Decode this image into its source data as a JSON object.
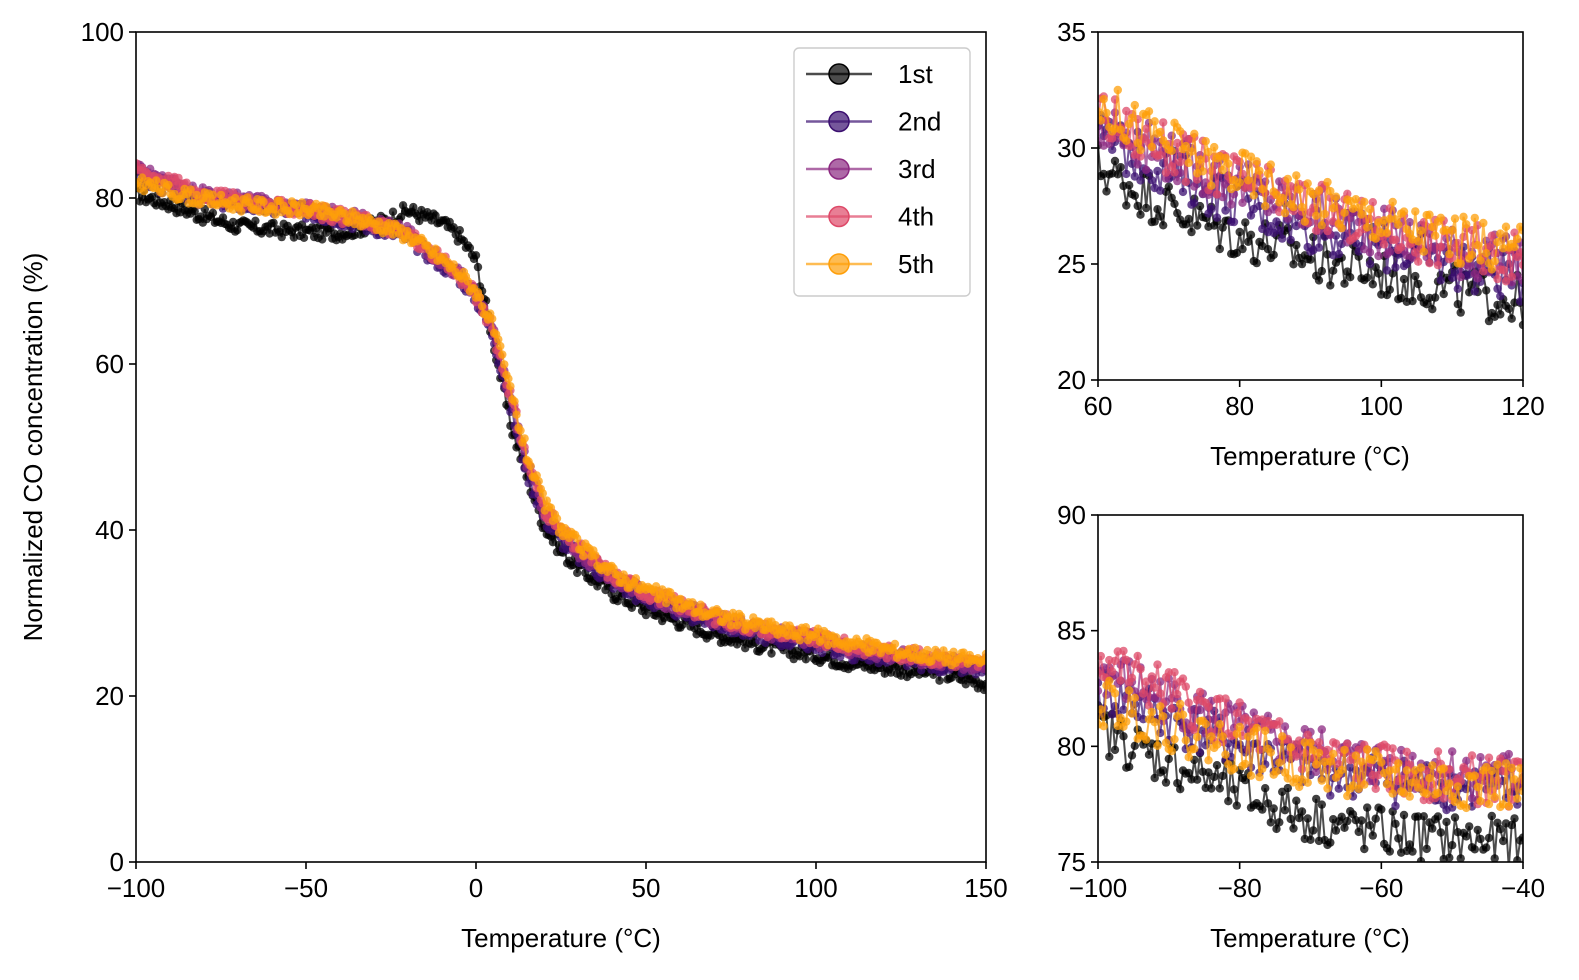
{
  "colors": {
    "1st": "#000000",
    "2nd": "#3b0f70",
    "3rd": "#8c2981",
    "4th": "#de4968",
    "5th": "#fe9f0a"
  },
  "chart_data": [
    {
      "type": "line",
      "panel": "main",
      "xlabel": "Temperature (°C)",
      "ylabel": "Normalized CO concentration (%)",
      "xlim": [
        -100,
        150
      ],
      "ylim": [
        0,
        100
      ],
      "xticks": [
        -100,
        -50,
        0,
        50,
        100,
        150
      ],
      "xtick_labels": [
        "−100",
        "−50",
        "0",
        "50",
        "100",
        "150"
      ],
      "yticks": [
        0,
        20,
        40,
        60,
        80,
        100
      ],
      "ytick_labels": [
        "0",
        "20",
        "40",
        "60",
        "80",
        "100"
      ],
      "legend": "top-right",
      "grid": false,
      "markers": "circle",
      "x": [
        -100,
        -90,
        -80,
        -70,
        -60,
        -50,
        -40,
        -30,
        -20,
        -10,
        -5,
        0,
        5,
        10,
        15,
        20,
        25,
        30,
        40,
        50,
        60,
        70,
        80,
        90,
        100,
        110,
        120,
        130,
        140,
        150
      ],
      "series": [
        {
          "name": "1st",
          "values": [
            80.5,
            79.3,
            77.8,
            76.6,
            76.2,
            75.9,
            75.8,
            76.8,
            78.5,
            77.0,
            75.5,
            72.5,
            63.0,
            53.0,
            46.5,
            40.5,
            37.5,
            35.5,
            32.5,
            30.5,
            29.0,
            27.5,
            26.5,
            25.5,
            25.0,
            24.0,
            23.5,
            23.0,
            22.5,
            21.5
          ]
        },
        {
          "name": "2nd",
          "values": [
            82.5,
            81.0,
            79.8,
            79.2,
            78.7,
            78.3,
            77.5,
            76.5,
            75.2,
            72.0,
            70.5,
            68.0,
            63.5,
            55.0,
            47.0,
            41.5,
            38.8,
            36.8,
            33.8,
            31.6,
            30.2,
            28.8,
            27.8,
            26.8,
            26.2,
            25.2,
            24.6,
            24.0,
            23.5,
            23.0
          ]
        },
        {
          "name": "3rd",
          "values": [
            83.3,
            81.8,
            80.4,
            79.8,
            79.2,
            78.8,
            77.9,
            77.2,
            75.8,
            72.5,
            70.8,
            68.4,
            63.8,
            56.0,
            48.0,
            42.4,
            39.5,
            37.5,
            34.3,
            32.2,
            30.8,
            29.3,
            28.3,
            27.4,
            26.7,
            25.8,
            25.1,
            24.6,
            24.1,
            23.6
          ]
        },
        {
          "name": "4th",
          "values": [
            83.5,
            82.0,
            80.5,
            79.7,
            79.0,
            78.6,
            77.8,
            77.0,
            75.6,
            72.4,
            70.7,
            68.3,
            64.0,
            56.5,
            48.4,
            42.7,
            39.8,
            37.8,
            34.6,
            32.5,
            31.0,
            29.5,
            28.5,
            27.6,
            26.9,
            26.0,
            25.4,
            24.8,
            24.3,
            23.8
          ]
        },
        {
          "name": "5th",
          "values": [
            82.0,
            80.8,
            79.8,
            79.3,
            78.9,
            78.6,
            77.9,
            77.0,
            75.6,
            72.6,
            71.0,
            68.8,
            64.5,
            57.0,
            49.0,
            43.2,
            40.2,
            38.2,
            34.9,
            32.8,
            31.2,
            29.8,
            28.8,
            27.9,
            27.3,
            26.4,
            25.7,
            25.1,
            24.6,
            24.2
          ]
        }
      ]
    },
    {
      "type": "line",
      "panel": "inset-top",
      "xlabel": "Temperature (°C)",
      "ylabel": "",
      "xlim": [
        60,
        120
      ],
      "ylim": [
        20,
        35
      ],
      "xticks": [
        60,
        80,
        100,
        120
      ],
      "xtick_labels": [
        "60",
        "80",
        "100",
        "120"
      ],
      "yticks": [
        20,
        25,
        30,
        35
      ],
      "ytick_labels": [
        "20",
        "25",
        "30",
        "35"
      ],
      "grid": false,
      "markers": "circle",
      "x": [
        60,
        65,
        70,
        75,
        80,
        85,
        90,
        95,
        100,
        105,
        110,
        115,
        120
      ],
      "series": [
        {
          "name": "1st",
          "values": [
            29.2,
            28.3,
            27.5,
            26.8,
            26.2,
            25.8,
            25.3,
            24.9,
            24.6,
            24.2,
            23.9,
            23.6,
            23.4
          ]
        },
        {
          "name": "2nd",
          "values": [
            30.6,
            29.7,
            29.0,
            28.3,
            27.7,
            27.1,
            26.6,
            26.2,
            25.8,
            25.4,
            25.0,
            24.7,
            24.4
          ]
        },
        {
          "name": "3rd",
          "values": [
            31.3,
            30.4,
            29.7,
            29.0,
            28.4,
            27.8,
            27.3,
            26.8,
            26.4,
            26.0,
            25.6,
            25.3,
            25.0
          ]
        },
        {
          "name": "4th",
          "values": [
            31.6,
            30.6,
            29.9,
            29.2,
            28.6,
            28.0,
            27.5,
            27.0,
            26.6,
            26.2,
            25.8,
            25.5,
            25.2
          ]
        },
        {
          "name": "5th",
          "values": [
            32.0,
            31.0,
            30.2,
            29.5,
            28.9,
            28.3,
            27.8,
            27.3,
            26.9,
            26.5,
            26.1,
            25.8,
            25.5
          ]
        }
      ]
    },
    {
      "type": "line",
      "panel": "inset-bottom",
      "xlabel": "Temperature (°C)",
      "ylabel": "",
      "xlim": [
        -100,
        -40
      ],
      "ylim": [
        75,
        90
      ],
      "xticks": [
        -100,
        -80,
        -60,
        -40
      ],
      "xtick_labels": [
        "−100",
        "−80",
        "−60",
        "−40"
      ],
      "yticks": [
        75,
        80,
        85,
        90
      ],
      "ytick_labels": [
        "75",
        "80",
        "85",
        "90"
      ],
      "grid": false,
      "markers": "circle",
      "x": [
        -100,
        -95,
        -90,
        -85,
        -80,
        -75,
        -70,
        -65,
        -60,
        -55,
        -50,
        -45,
        -40
      ],
      "series": [
        {
          "name": "1st",
          "values": [
            80.8,
            80.0,
            79.3,
            78.7,
            78.0,
            77.4,
            76.9,
            76.5,
            76.3,
            76.1,
            76.0,
            75.9,
            75.8
          ]
        },
        {
          "name": "2nd",
          "values": [
            82.4,
            81.9,
            81.2,
            80.6,
            80.0,
            79.5,
            79.1,
            78.8,
            78.6,
            78.4,
            78.3,
            78.2,
            78.1
          ]
        },
        {
          "name": "3rd",
          "values": [
            83.2,
            82.7,
            82.0,
            81.4,
            80.7,
            80.2,
            79.8,
            79.4,
            79.2,
            79.0,
            78.9,
            78.8,
            78.7
          ]
        },
        {
          "name": "4th",
          "values": [
            83.8,
            83.0,
            82.3,
            81.5,
            80.8,
            80.2,
            79.7,
            79.3,
            79.0,
            78.8,
            78.6,
            78.5,
            78.4
          ]
        },
        {
          "name": "5th",
          "values": [
            81.9,
            81.5,
            80.9,
            80.4,
            79.9,
            79.5,
            79.2,
            78.9,
            78.7,
            78.5,
            78.4,
            78.3,
            78.2
          ]
        }
      ]
    }
  ]
}
